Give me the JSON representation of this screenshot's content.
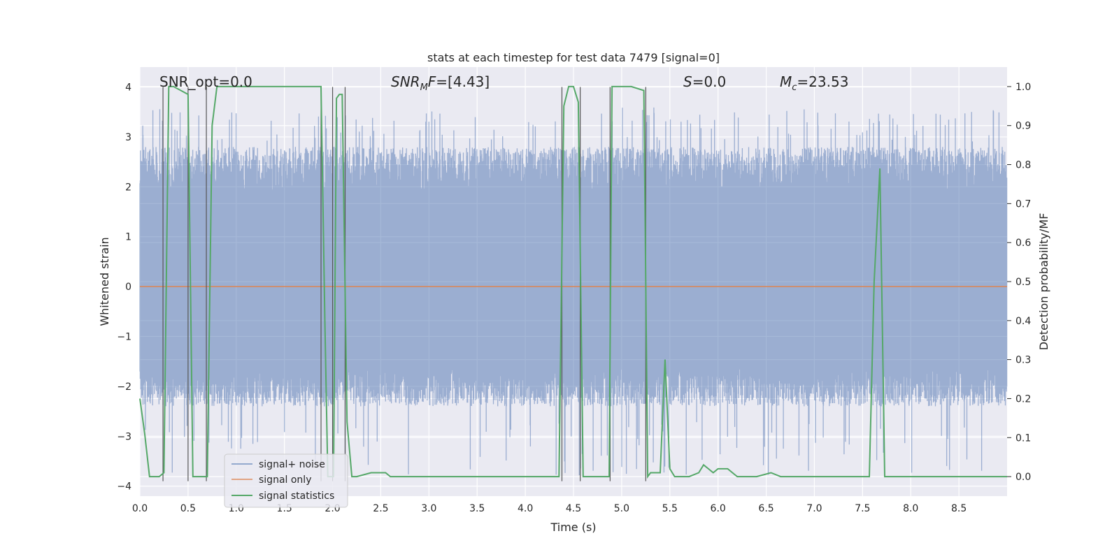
{
  "chart_data": {
    "type": "line",
    "title": "stats at each timestep for test data 7479 [signal=0]",
    "xlabel": "Time (s)",
    "ylabel": "Whitened strain",
    "y2label": "Detection probability/MF",
    "xlim": [
      0,
      9.0
    ],
    "ylim": [
      -4.2,
      4.4
    ],
    "y2lim": [
      -0.05,
      1.05
    ],
    "x_ticks": [
      0.0,
      0.5,
      1.0,
      1.5,
      2.0,
      2.5,
      3.0,
      3.5,
      4.0,
      4.5,
      5.0,
      5.5,
      6.0,
      6.5,
      7.0,
      7.5,
      8.0,
      8.5
    ],
    "y_ticks": [
      -4,
      -3,
      -2,
      -1,
      0,
      1,
      2,
      3,
      4
    ],
    "y2_ticks": [
      0.0,
      0.1,
      0.2,
      0.3,
      0.4,
      0.5,
      0.6,
      0.7,
      0.8,
      0.9,
      1.0
    ],
    "grid": true,
    "legend_location": "lower-left",
    "annotations": {
      "snr_opt": "SNR_opt=0.0",
      "snr_mf": "=[4.43]",
      "s_stat": "=0.0",
      "mc": "=23.53"
    },
    "series": [
      {
        "name": "signal+ noise",
        "color": "#4c72b0",
        "description": "noise-only whitened strain, approx. amplitude range -3.9 to 3.5 over 0-9 s"
      },
      {
        "name": "signal only",
        "color": "#dd8452",
        "values": "zero everywhere (signal=0)"
      },
      {
        "name": "signal statistics",
        "color": "#55a868",
        "axis": "right",
        "x": [
          0.0,
          0.05,
          0.1,
          0.2,
          0.25,
          0.3,
          0.35,
          0.5,
          0.55,
          0.6,
          0.7,
          0.75,
          0.8,
          0.9,
          1.2,
          1.5,
          1.8,
          1.88,
          1.92,
          1.95,
          1.98,
          2.01,
          2.04,
          2.07,
          2.1,
          2.15,
          2.2,
          2.25,
          2.4,
          2.55,
          2.6,
          2.65,
          3.0,
          3.5,
          4.0,
          4.3,
          4.35,
          4.4,
          4.45,
          4.5,
          4.55,
          4.6,
          4.7,
          4.87,
          4.9,
          4.95,
          5.1,
          5.23,
          5.27,
          5.3,
          5.35,
          5.4,
          5.45,
          5.5,
          5.55,
          5.7,
          5.8,
          5.85,
          5.9,
          5.95,
          6.0,
          6.05,
          6.1,
          6.2,
          6.4,
          6.55,
          6.65,
          7.0,
          7.5,
          7.57,
          7.62,
          7.68,
          7.73,
          7.76,
          8.0,
          8.5,
          9.0
        ],
        "values": [
          0.2,
          0.11,
          0.0,
          0.0,
          0.01,
          1.0,
          1.0,
          0.98,
          0.0,
          0.0,
          0.0,
          0.9,
          1.0,
          1.0,
          1.0,
          1.0,
          1.0,
          1.0,
          0.4,
          0.0,
          0.0,
          0.0,
          0.97,
          0.98,
          0.98,
          0.14,
          0.0,
          0.0,
          0.01,
          0.01,
          0.0,
          0.0,
          0.0,
          0.0,
          0.0,
          0.0,
          0.0,
          0.95,
          1.0,
          1.0,
          0.96,
          0.0,
          0.0,
          0.0,
          1.0,
          1.0,
          1.0,
          0.99,
          0.0,
          0.01,
          0.01,
          0.01,
          0.3,
          0.02,
          0.0,
          0.0,
          0.01,
          0.03,
          0.02,
          0.01,
          0.02,
          0.02,
          0.02,
          0.0,
          0.0,
          0.01,
          0.0,
          0.0,
          0.0,
          0.0,
          0.5,
          0.79,
          0.0,
          0.0,
          0.0,
          0.0,
          0.0
        ]
      }
    ],
    "vertical_lines_x": [
      0.24,
      0.5,
      0.69,
      1.88,
      2.0,
      2.13,
      4.38,
      4.57,
      4.88,
      5.25
    ]
  }
}
